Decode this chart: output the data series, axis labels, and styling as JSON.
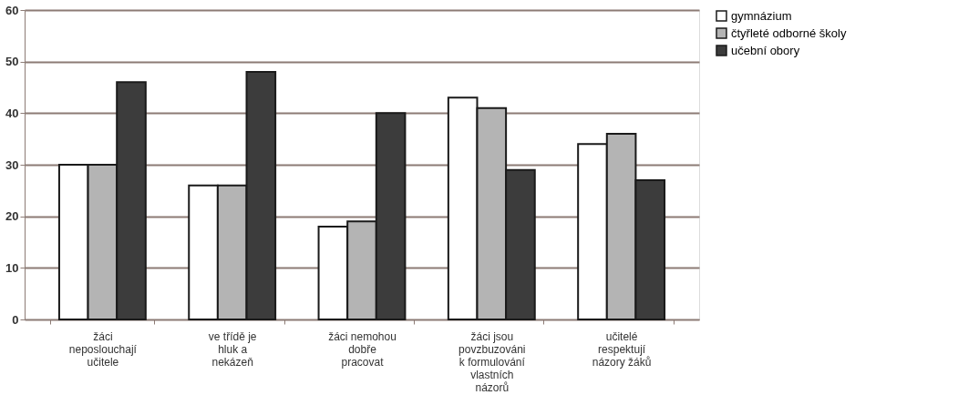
{
  "chart_data": {
    "type": "bar",
    "categories": [
      "žáci neposlouchají učitele",
      "ve třídě je hluk a nekázeň",
      "žáci nemohou dobře pracovat",
      "žáci jsou povzbuzováni k formulování vlastních názorů",
      "učitelé respektují názory žáků"
    ],
    "series": [
      {
        "name": "gymnázium",
        "color": "#ffffff",
        "values": [
          30,
          26,
          18,
          43,
          34
        ]
      },
      {
        "name": "čtyřleté odborné školy",
        "color": "#b4b4b4",
        "values": [
          30,
          26,
          19,
          41,
          36
        ]
      },
      {
        "name": "učební obory",
        "color": "#3c3c3c",
        "values": [
          46,
          48,
          40,
          29,
          27
        ]
      }
    ],
    "ylim": [
      0,
      60
    ],
    "yticks": [
      0,
      10,
      20,
      30,
      40,
      50,
      60
    ],
    "grid": "y",
    "legend": "right"
  }
}
